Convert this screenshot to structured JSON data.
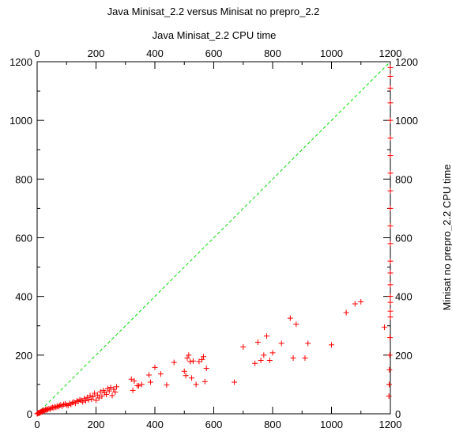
{
  "chart_data": {
    "type": "scatter",
    "title": "Java Minisat_2.2 versus Minisat no prepro_2.2",
    "xlabel": "Java Minisat_2.2 CPU time",
    "ylabel": "Minisat no prepro_2.2 CPU time",
    "xlim": [
      0,
      1200
    ],
    "ylim": [
      0,
      1200
    ],
    "xticks": [
      "0",
      "200",
      "400",
      "600",
      "800",
      "1000",
      "1200"
    ],
    "yticks": [
      "0",
      "200",
      "400",
      "600",
      "800",
      "1000",
      "1200"
    ],
    "grid": false,
    "colors": {
      "points": "#ff0000",
      "diagonal": "#00dd00",
      "axes": "#000000"
    },
    "diagonal": {
      "x": [
        0,
        1200
      ],
      "y": [
        0,
        1200
      ]
    },
    "points": [
      [
        0,
        0
      ],
      [
        2,
        1
      ],
      [
        3,
        2
      ],
      [
        5,
        3
      ],
      [
        6,
        4
      ],
      [
        8,
        2
      ],
      [
        10,
        5
      ],
      [
        12,
        6
      ],
      [
        14,
        8
      ],
      [
        16,
        6
      ],
      [
        18,
        10
      ],
      [
        20,
        9
      ],
      [
        22,
        12
      ],
      [
        25,
        10
      ],
      [
        28,
        14
      ],
      [
        30,
        12
      ],
      [
        33,
        16
      ],
      [
        36,
        14
      ],
      [
        40,
        18
      ],
      [
        44,
        16
      ],
      [
        48,
        20
      ],
      [
        52,
        22
      ],
      [
        56,
        20
      ],
      [
        60,
        24
      ],
      [
        64,
        22
      ],
      [
        68,
        26
      ],
      [
        72,
        24
      ],
      [
        76,
        28
      ],
      [
        80,
        30
      ],
      [
        85,
        26
      ],
      [
        90,
        32
      ],
      [
        95,
        34
      ],
      [
        100,
        30
      ],
      [
        105,
        28
      ],
      [
        110,
        36
      ],
      [
        115,
        32
      ],
      [
        120,
        38
      ],
      [
        125,
        40
      ],
      [
        130,
        36
      ],
      [
        135,
        44
      ],
      [
        140,
        42
      ],
      [
        145,
        48
      ],
      [
        150,
        46
      ],
      [
        155,
        40
      ],
      [
        160,
        52
      ],
      [
        165,
        44
      ],
      [
        170,
        56
      ],
      [
        175,
        48
      ],
      [
        180,
        62
      ],
      [
        185,
        50
      ],
      [
        190,
        58
      ],
      [
        195,
        70
      ],
      [
        200,
        46
      ],
      [
        205,
        64
      ],
      [
        210,
        54
      ],
      [
        215,
        75
      ],
      [
        220,
        60
      ],
      [
        225,
        80
      ],
      [
        230,
        72
      ],
      [
        235,
        66
      ],
      [
        240,
        86
      ],
      [
        245,
        78
      ],
      [
        250,
        90
      ],
      [
        255,
        62
      ],
      [
        260,
        84
      ],
      [
        265,
        74
      ],
      [
        270,
        92
      ],
      [
        320,
        118
      ],
      [
        325,
        80
      ],
      [
        330,
        112
      ],
      [
        340,
        96
      ],
      [
        345,
        95
      ],
      [
        355,
        100
      ],
      [
        380,
        132
      ],
      [
        385,
        108
      ],
      [
        400,
        158
      ],
      [
        420,
        136
      ],
      [
        440,
        98
      ],
      [
        465,
        175
      ],
      [
        500,
        145
      ],
      [
        505,
        130
      ],
      [
        510,
        190
      ],
      [
        515,
        200
      ],
      [
        520,
        178
      ],
      [
        525,
        122
      ],
      [
        530,
        180
      ],
      [
        540,
        100
      ],
      [
        550,
        178
      ],
      [
        560,
        185
      ],
      [
        565,
        195
      ],
      [
        570,
        110
      ],
      [
        575,
        155
      ],
      [
        670,
        108
      ],
      [
        700,
        228
      ],
      [
        740,
        172
      ],
      [
        750,
        244
      ],
      [
        760,
        182
      ],
      [
        770,
        200
      ],
      [
        780,
        265
      ],
      [
        790,
        182
      ],
      [
        800,
        208
      ],
      [
        830,
        240
      ],
      [
        860,
        326
      ],
      [
        870,
        190
      ],
      [
        880,
        305
      ],
      [
        910,
        190
      ],
      [
        920,
        240
      ],
      [
        1000,
        235
      ],
      [
        1050,
        345
      ],
      [
        1080,
        375
      ],
      [
        1100,
        382
      ],
      [
        1180,
        295
      ],
      [
        1195,
        60
      ],
      [
        1196,
        100
      ],
      [
        1197,
        150
      ],
      [
        1198,
        200
      ],
      [
        1199,
        260
      ],
      [
        1200,
        330
      ],
      [
        1200,
        350
      ],
      [
        1200,
        380
      ],
      [
        1200,
        400
      ],
      [
        1200,
        440
      ],
      [
        1200,
        480
      ],
      [
        1200,
        520
      ],
      [
        1200,
        580
      ],
      [
        1200,
        640
      ],
      [
        1200,
        700
      ],
      [
        1200,
        760
      ],
      [
        1200,
        820
      ],
      [
        1200,
        880
      ],
      [
        1200,
        940
      ],
      [
        1200,
        1000
      ],
      [
        1200,
        1060
      ],
      [
        1200,
        1110
      ],
      [
        1200,
        1150
      ],
      [
        1200,
        1180
      ]
    ]
  }
}
